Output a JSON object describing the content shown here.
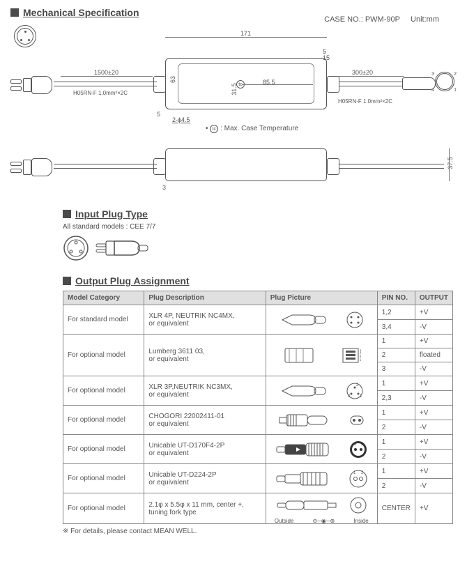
{
  "header": {
    "section_title": "Mechanical Specification",
    "case_no_label": "CASE NO.: PWM-90P",
    "unit_label": "Unit:mm"
  },
  "drawing": {
    "width_171": "171",
    "cable_left": "1500±20",
    "cable_left_spec": "H05RN-F 1.0mm²×2C",
    "cable_right": "300±20",
    "cable_right_spec": "H05RN-F 1.0mm²×2C",
    "height_63": "63",
    "dim_31_5": "31.5",
    "dim_85_5": "85.5",
    "dim_5_top": "5",
    "dim_5_left": "5",
    "dim_15": "15",
    "hole_note": "2-ϕ4.5",
    "tc_label": "tc",
    "tc_note": ": Max. Case Temperature",
    "tc_circle": "• tc",
    "side_3": "3",
    "side_37_5": "37.5",
    "pin_1": "1",
    "pin_2": "2",
    "pin_3": "3",
    "pin_4": "4"
  },
  "input_section": {
    "title": "Input Plug Type",
    "note": "All standard models : CEE 7/7"
  },
  "output_section": {
    "title": "Output Plug Assignment",
    "columns": {
      "c1": "Model Category",
      "c2": "Plug Description",
      "c3": "Plug Picture",
      "c4": "PIN NO.",
      "c5": "OUTPUT"
    },
    "rows": [
      {
        "category": "For standard model",
        "desc_line1": "XLR 4P, NEUTRIK NC4MX,",
        "desc_line2": "or equivalent",
        "pins": [
          {
            "pin": "1,2",
            "out": "+V"
          },
          {
            "pin": "3,4",
            "out": "-V"
          }
        ]
      },
      {
        "category": "For optional model",
        "desc_line1": "Lumberg 3611 03,",
        "desc_line2": "or equivalent",
        "pins": [
          {
            "pin": "1",
            "out": "+V"
          },
          {
            "pin": "2",
            "out": "floated"
          },
          {
            "pin": "3",
            "out": "-V"
          }
        ]
      },
      {
        "category": "For optional model",
        "desc_line1": "XLR 3P,NEUTRIK NC3MX,",
        "desc_line2": "or equivalent",
        "pins": [
          {
            "pin": "1",
            "out": "+V"
          },
          {
            "pin": "2,3",
            "out": "-V"
          }
        ]
      },
      {
        "category": "For optional model",
        "desc_line1": "CHOGORI 22002411-01",
        "desc_line2": "or equivalent",
        "pins": [
          {
            "pin": "1",
            "out": "+V"
          },
          {
            "pin": "2",
            "out": "-V"
          }
        ]
      },
      {
        "category": "For optional model",
        "desc_line1": "Unicable UT-D170F4-2P",
        "desc_line2": "or equivalent",
        "pins": [
          {
            "pin": "1",
            "out": "+V"
          },
          {
            "pin": "2",
            "out": "-V"
          }
        ]
      },
      {
        "category": "For optional model",
        "desc_line1": "Unicable UT-D224-2P",
        "desc_line2": "or equivalent",
        "pins": [
          {
            "pin": "1",
            "out": "+V"
          },
          {
            "pin": "2",
            "out": "-V"
          }
        ]
      },
      {
        "category": "For optional model",
        "desc_line1": "2.1φ x 5.5φ x 11 mm, center +,",
        "desc_line2": "tuning fork type",
        "pins": [
          {
            "pin": "CENTER",
            "out": "+V"
          }
        ],
        "outside_label": "Outside",
        "inside_label": "Inside",
        "polarity": "⊖─◉─⊕"
      }
    ],
    "footnote": "※ For details, please contact MEAN WELL."
  },
  "style": {
    "header_bg": "#e0e0e0",
    "border_color": "#888888",
    "text_color": "#4a4a4a",
    "line_color": "#555555"
  }
}
